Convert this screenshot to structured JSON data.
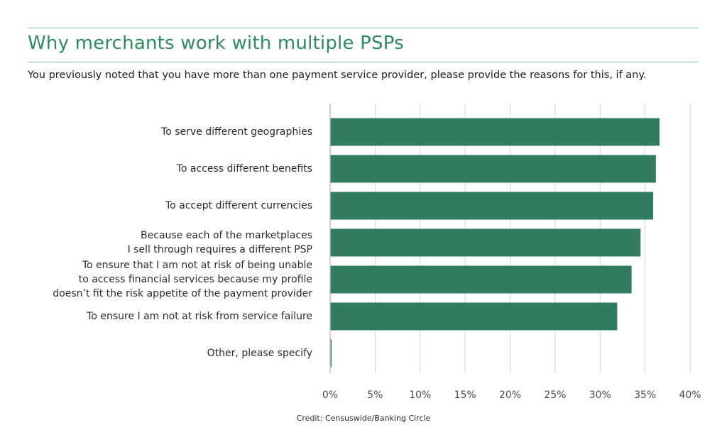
{
  "header": {
    "title": "Why merchants work with multiple PSPs",
    "subtitle": "You previously noted that you have more than one payment service provider, please provide the reasons for this, if any."
  },
  "footer": {
    "credit": "Credit: Censuswide/Banking Circle"
  },
  "colors": {
    "bar": "#317b5e",
    "accent": "#2e8a5f",
    "rule": "#7fbf9f",
    "grid": "#d4d4d4",
    "axis": "#bdbdbd",
    "label": "#2b2b2b",
    "tick": "#4a4a4a"
  },
  "chart_data": {
    "type": "bar",
    "orientation": "horizontal",
    "title": "Why merchants work with multiple PSPs",
    "subtitle": "You previously noted that you have more than one payment service provider, please provide the reasons for this, if any.",
    "categories": [
      [
        "To serve different geographies"
      ],
      [
        "To access different benefits"
      ],
      [
        "To accept different currencies"
      ],
      [
        "Because each of the marketplaces",
        "I sell through requires a different PSP"
      ],
      [
        "To ensure that I am not at risk of being unable",
        "to access financial services because my profile",
        "doesn’t fit the risk appetite of the payment provider"
      ],
      [
        "To ensure I am not at risk from service failure"
      ],
      [
        "Other, please specify"
      ]
    ],
    "values": [
      36.6,
      36.2,
      35.9,
      34.5,
      33.5,
      31.9,
      0.1
    ],
    "xlim": [
      0,
      40
    ],
    "ticks": [
      0,
      5,
      10,
      15,
      20,
      25,
      30,
      35,
      40
    ],
    "tick_labels": [
      "0%",
      "5%",
      "10%",
      "15%",
      "20%",
      "25%",
      "30%",
      "35%",
      "40%"
    ],
    "unit": "%",
    "grid": true,
    "legend": "none"
  }
}
